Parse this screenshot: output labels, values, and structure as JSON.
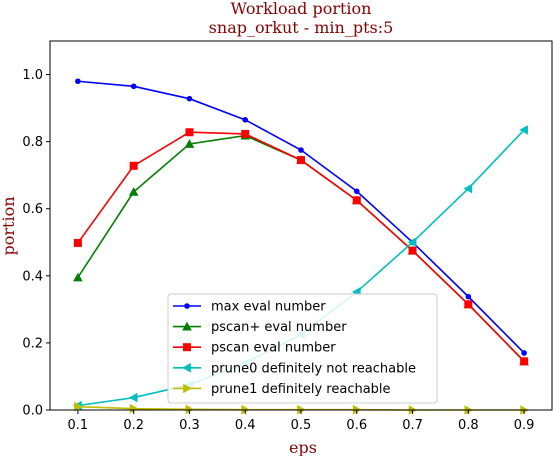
{
  "chart_data": {
    "type": "line",
    "title": "Workload portion",
    "subtitle": "snap_orkut - min_pts:5",
    "xlabel": "eps",
    "ylabel": "portion",
    "x": [
      0.1,
      0.2,
      0.3,
      0.4,
      0.5,
      0.6,
      0.7,
      0.8,
      0.9
    ],
    "xlim": [
      0.05,
      0.95
    ],
    "ylim": [
      0.0,
      1.1
    ],
    "xticks": [
      "0.1",
      "0.2",
      "0.3",
      "0.4",
      "0.5",
      "0.6",
      "0.7",
      "0.8",
      "0.9"
    ],
    "yticks": [
      "0.0",
      "0.2",
      "0.4",
      "0.6",
      "0.8",
      "1.0"
    ],
    "grid": false,
    "legend_position": "lower-center",
    "series": [
      {
        "name": "max eval number",
        "color": "#0000ff",
        "marker": "circle",
        "values": [
          0.98,
          0.965,
          0.928,
          0.865,
          0.775,
          0.652,
          0.5,
          0.338,
          0.17
        ]
      },
      {
        "name": "pscan+ eval number",
        "color": "#008000",
        "marker": "triangle-up",
        "values": [
          0.395,
          0.65,
          0.793,
          0.818,
          0.745,
          0.625,
          0.475,
          0.315,
          0.145
        ]
      },
      {
        "name": "pscan eval number",
        "color": "#ff0000",
        "marker": "square",
        "values": [
          0.498,
          0.728,
          0.828,
          0.823,
          0.745,
          0.625,
          0.475,
          0.315,
          0.145
        ]
      },
      {
        "name": "prune0 definitely not reachable",
        "color": "#00bfbf",
        "marker": "triangle-left",
        "values": [
          0.013,
          0.037,
          0.075,
          0.14,
          0.225,
          0.352,
          0.5,
          0.66,
          0.835
        ]
      },
      {
        "name": "prune1 definitely reachable",
        "color": "#bfbf00",
        "marker": "triangle-right",
        "values": [
          0.01,
          0.004,
          0.002,
          0.001,
          0.001,
          0.001,
          0.0,
          0.0,
          0.0
        ]
      }
    ]
  }
}
